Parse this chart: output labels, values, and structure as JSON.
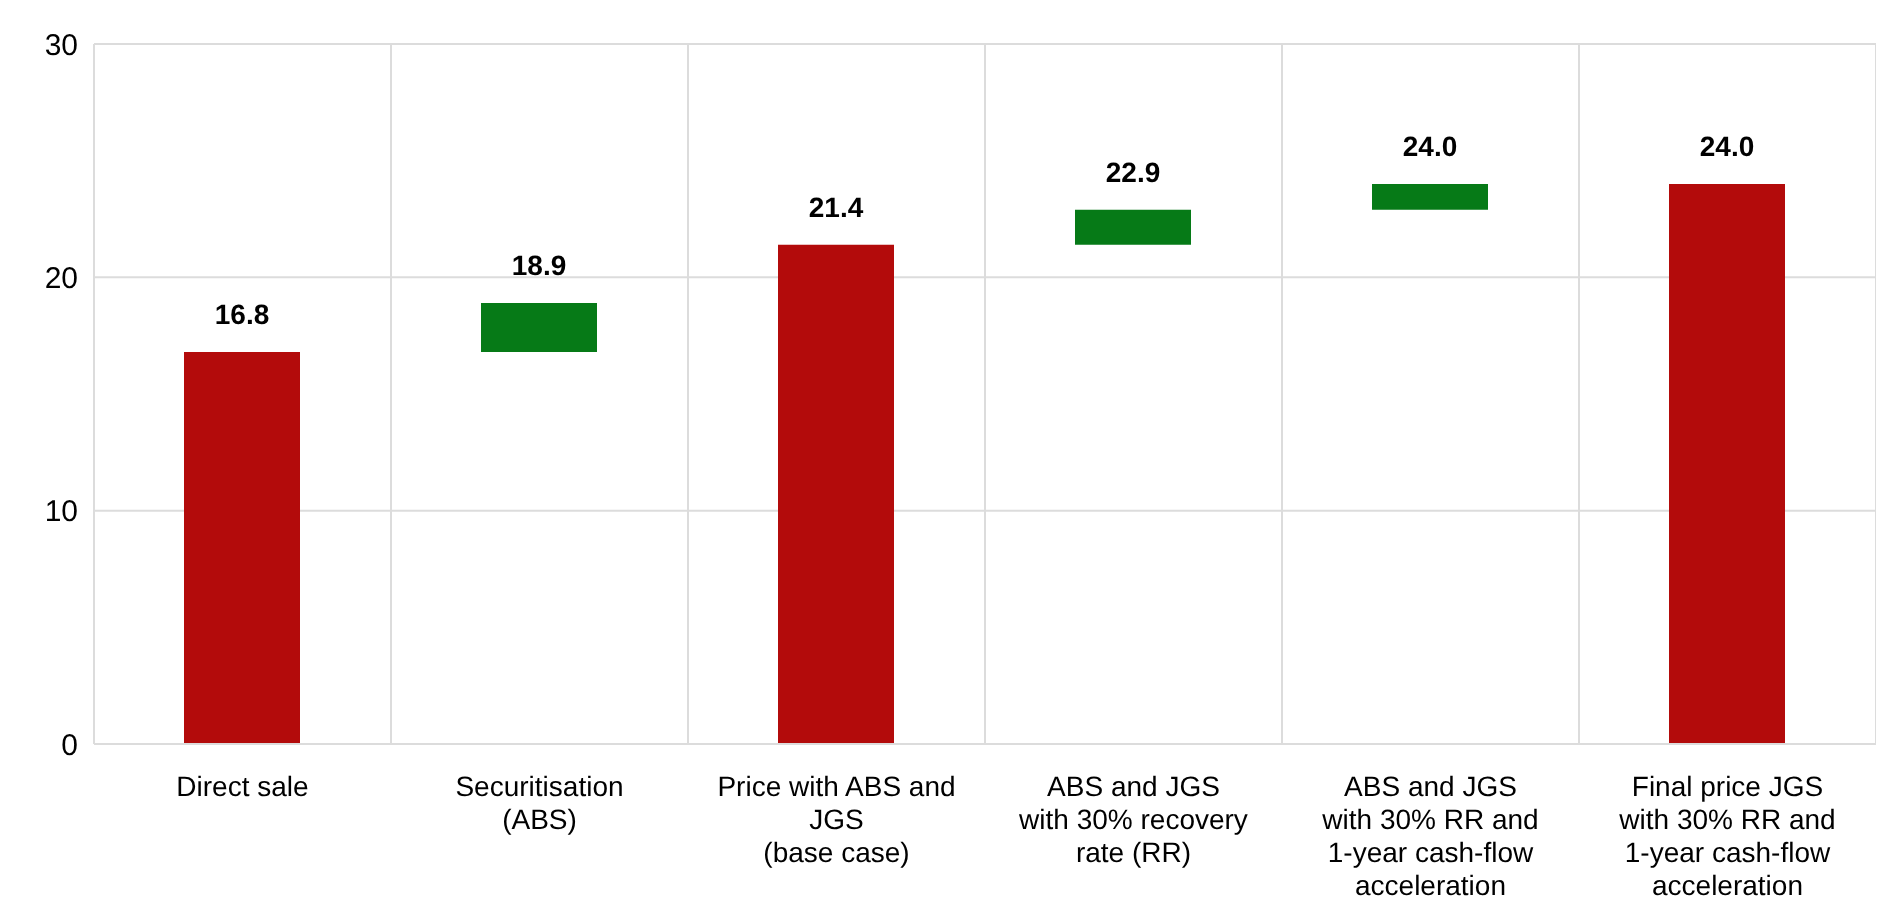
{
  "chart_data": {
    "type": "bar",
    "categories": [
      "Direct sale",
      "Securitisation\n(ABS)",
      "Price with ABS and\nJGS\n(base case)",
      "ABS and JGS\nwith 30% recovery\nrate (RR)",
      "ABS and JGS\nwith 30% RR and\n1-year cash-flow\nacceleration",
      "Final price JGS\nwith 30% RR and\n1-year cash-flow\nacceleration"
    ],
    "values": [
      16.8,
      2.1,
      21.4,
      1.5,
      1.1,
      24.0
    ],
    "base": [
      0,
      16.8,
      0,
      21.4,
      22.9,
      0
    ],
    "colors": [
      "#b30b0b",
      "#067a17",
      "#b30b0b",
      "#067a17",
      "#067a17",
      "#b30b0b"
    ],
    "value_labels": [
      "16.8",
      "18.9",
      "21.4",
      "22.9",
      "24.0",
      "24.0"
    ],
    "ylim": [
      0,
      30
    ],
    "yticks": [
      0,
      10,
      20,
      30
    ],
    "grid": true
  }
}
